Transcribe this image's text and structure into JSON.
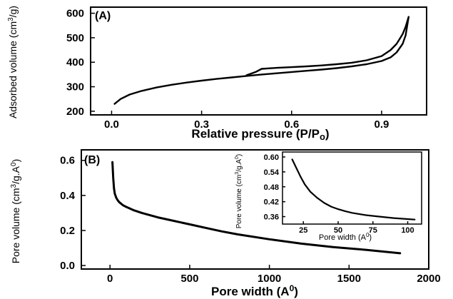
{
  "chart_data": [
    {
      "type": "line",
      "panel_label": "(A)",
      "xlabel": "Relative pressure (P/Po)",
      "ylabel": "Adsorbed volume (cm3/g)",
      "xlim": [
        -0.07,
        1.05
      ],
      "ylim": [
        185,
        625
      ],
      "xticks": [
        0.0,
        0.3,
        0.6,
        0.9
      ],
      "xtick_labels": [
        "0.0",
        "0.3",
        "0.6",
        "0.9"
      ],
      "yticks": [
        200,
        300,
        400,
        500,
        600
      ],
      "ytick_labels": [
        "200",
        "300",
        "400",
        "500",
        "600"
      ],
      "series": [
        {
          "values_note": "adsorption branch",
          "x": [
            0.01,
            0.03,
            0.06,
            0.1,
            0.15,
            0.2,
            0.25,
            0.3,
            0.35,
            0.4,
            0.45,
            0.5,
            0.55,
            0.6,
            0.65,
            0.7,
            0.75,
            0.8,
            0.85,
            0.9,
            0.93,
            0.95,
            0.97,
            0.98,
            0.99
          ],
          "y": [
            230,
            250,
            268,
            283,
            297,
            308,
            317,
            325,
            332,
            338,
            344,
            350,
            355,
            360,
            365,
            370,
            376,
            383,
            392,
            405,
            420,
            440,
            475,
            510,
            585
          ]
        },
        {
          "values_note": "desorption branch",
          "x": [
            0.99,
            0.98,
            0.97,
            0.96,
            0.95,
            0.93,
            0.9,
            0.85,
            0.8,
            0.75,
            0.7,
            0.65,
            0.6,
            0.55,
            0.5,
            0.48,
            0.45
          ],
          "y": [
            585,
            545,
            515,
            495,
            475,
            450,
            425,
            408,
            398,
            392,
            387,
            383,
            380,
            377,
            373,
            360,
            347
          ]
        }
      ]
    },
    {
      "type": "line",
      "panel_label": "(B)",
      "xlabel": "Pore width (A0)",
      "ylabel": "Pore volume (cm3/g.A0)",
      "xlim": [
        -180,
        2000
      ],
      "ylim": [
        -0.02,
        0.66
      ],
      "xticks": [
        0,
        500,
        1000,
        1500,
        2000
      ],
      "xtick_labels": [
        "0",
        "500",
        "1000",
        "1500",
        "2000"
      ],
      "yticks": [
        0.0,
        0.2,
        0.4,
        0.6
      ],
      "ytick_labels": [
        "0.0",
        "0.2",
        "0.4",
        "0.6"
      ],
      "series": [
        {
          "x": [
            15,
            20,
            25,
            30,
            40,
            50,
            60,
            80,
            100,
            150,
            200,
            300,
            400,
            500,
            600,
            700,
            800,
            1000,
            1200,
            1400,
            1600,
            1820
          ],
          "y": [
            0.59,
            0.5,
            0.44,
            0.41,
            0.385,
            0.37,
            0.36,
            0.345,
            0.335,
            0.315,
            0.3,
            0.275,
            0.255,
            0.235,
            0.215,
            0.195,
            0.178,
            0.15,
            0.125,
            0.105,
            0.09,
            0.07
          ]
        }
      ]
    },
    {
      "type": "line",
      "panel_label": "inset",
      "xlabel": "Pore width (A0)",
      "ylabel": "Pore volume (cm3/g.A0)",
      "xlim": [
        10,
        110
      ],
      "ylim": [
        0.33,
        0.62
      ],
      "xticks": [
        25,
        50,
        75,
        100
      ],
      "xtick_labels": [
        "25",
        "50",
        "75",
        "100"
      ],
      "yticks": [
        0.36,
        0.42,
        0.48,
        0.54,
        0.6
      ],
      "ytick_labels": [
        "0.36",
        "0.42",
        "0.48",
        "0.54",
        "0.60"
      ],
      "series": [
        {
          "x": [
            17,
            20,
            23,
            26,
            30,
            35,
            40,
            45,
            50,
            55,
            60,
            70,
            80,
            90,
            100,
            105
          ],
          "y": [
            0.59,
            0.555,
            0.52,
            0.49,
            0.46,
            0.435,
            0.415,
            0.4,
            0.39,
            0.382,
            0.375,
            0.366,
            0.36,
            0.354,
            0.35,
            0.348
          ]
        }
      ]
    }
  ]
}
